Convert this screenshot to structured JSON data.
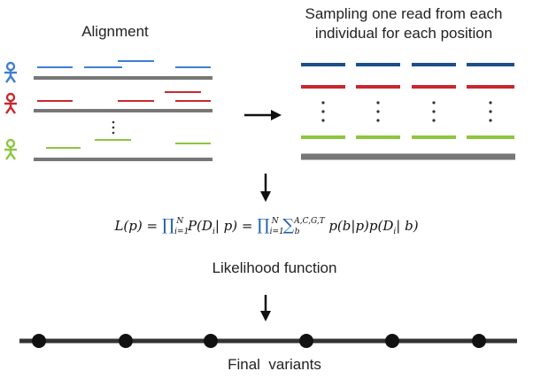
{
  "labels": {
    "alignment": "Alignment",
    "sampling_line1": "Sampling one read from each",
    "sampling_line2": "individual for each position",
    "likelihood": "Likelihood function",
    "final": "Final  variants"
  },
  "formula": {
    "lhs": "L(p) =",
    "prod1": "∏",
    "prod1_sub": "i=1",
    "prod1_sup": "N",
    "term1": "P(D",
    "term1_sub": "i",
    "term1_rest": "| p) =",
    "prod2": "∏",
    "prod2_sub": "i=1",
    "prod2_sup": "N",
    "sum": "∑",
    "sum_sup": "A,C,G,T",
    "sum_sub": "b",
    "term2": "p(b|p)p(D",
    "term2_sub": "i",
    "term2_rest": "| b)"
  },
  "colors": {
    "blue": "#1b4f8a",
    "blue_light": "#3f7fcf",
    "red": "#c8282e",
    "green": "#8dc63f",
    "gray": "#777777",
    "dark": "#333333"
  },
  "icons": [
    "person-icon-blue",
    "person-icon-red",
    "person-icon-green"
  ],
  "ellipsis": "⋮"
}
